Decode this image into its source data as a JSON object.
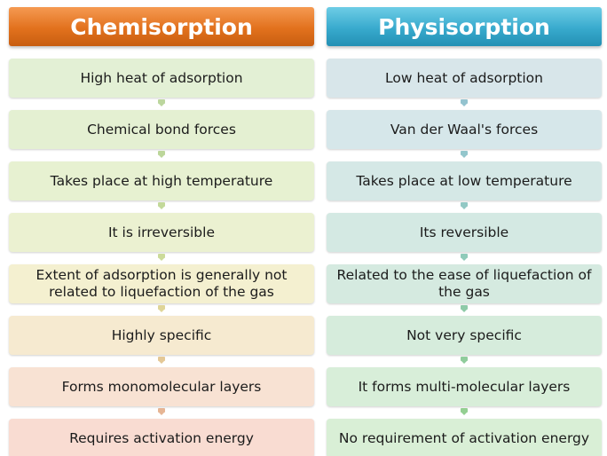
{
  "chemisorption": {
    "title": "Chemisorption",
    "items": [
      "High heat of adsorption",
      "Chemical bond forces",
      "Takes place at high temperature",
      "It is irreversible",
      "Extent of adsorption is generally not related to liquefaction of the gas",
      "Highly specific",
      "Forms monomolecular layers",
      "Requires activation energy"
    ]
  },
  "physisorption": {
    "title": "Physisorption",
    "items": [
      "Low heat of adsorption",
      "Van der Waal's forces",
      "Takes place at low temperature",
      "Its reversible",
      "Related to the ease of liquefaction of the gas",
      "Not very specific",
      "It forms multi-molecular layers",
      "No requirement of activation energy"
    ]
  },
  "colors": {
    "chemisorption_header": "#e2711d",
    "physisorption_header": "#38aacd"
  }
}
